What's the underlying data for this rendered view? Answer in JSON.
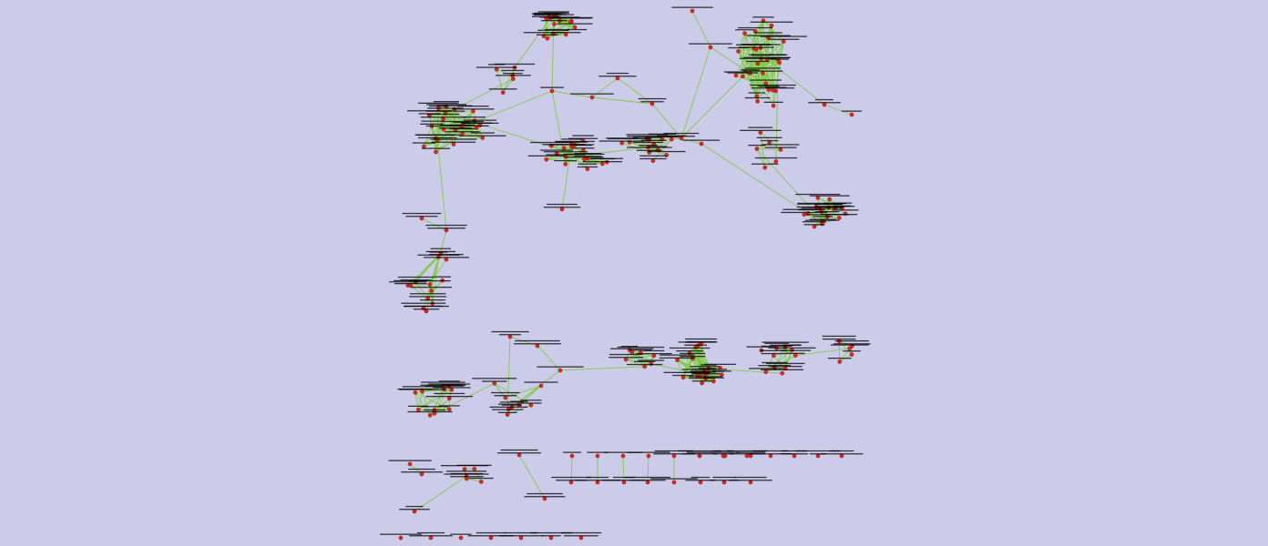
{
  "background_color": "#cccbea",
  "edge_color": "#7ccc3a",
  "node_color": "#e2261c",
  "label_color": "#000000"
}
